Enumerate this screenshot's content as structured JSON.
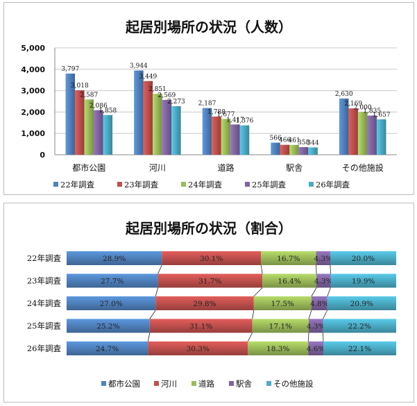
{
  "chart_data": [
    {
      "type": "bar",
      "title": "起居別場所の状況（人数）",
      "categories": [
        "都市公園",
        "河川",
        "道路",
        "駅舎",
        "その他施設"
      ],
      "series": [
        {
          "name": "22年調査",
          "color": "#4f81bd",
          "values": [
            3797,
            3944,
            2187,
            566,
            2630
          ]
        },
        {
          "name": "23年調査",
          "color": "#c0504d",
          "values": [
            3018,
            3449,
            1788,
            466,
            2169
          ]
        },
        {
          "name": "24年調査",
          "color": "#9bbb59",
          "values": [
            2587,
            2851,
            1677,
            461,
            2000
          ]
        },
        {
          "name": "25年調査",
          "color": "#8064a2",
          "values": [
            2086,
            2569,
            1417,
            358,
            1835
          ]
        },
        {
          "name": "26年調査",
          "color": "#4bacc6",
          "values": [
            1858,
            2273,
            1376,
            344,
            1657
          ]
        }
      ],
      "ylim": [
        0,
        5000
      ],
      "yticks": [
        "0",
        "1,000",
        "2,000",
        "3,000",
        "4,000",
        "5,000"
      ],
      "data_labels": [
        [
          "3,797",
          "3,944",
          "2,187",
          "566",
          "2,630"
        ],
        [
          "3,018",
          "3,449",
          "1,788",
          "466",
          "2,169"
        ],
        [
          "2,587",
          "2,851",
          "1,677",
          "461",
          "2,000"
        ],
        [
          "2,086",
          "2,569",
          "1,417",
          "358",
          "1,835"
        ],
        [
          "1,858",
          "2,273",
          "1,376",
          "344",
          "1,657"
        ]
      ],
      "grid": true,
      "legend_position": "bottom"
    },
    {
      "type": "bar",
      "orientation": "horizontal",
      "stacked": "percent",
      "title": "起居別場所の状況（割合）",
      "categories": [
        "22年調査",
        "23年調査",
        "24年調査",
        "25年調査",
        "26年調査"
      ],
      "series": [
        {
          "name": "都市公園",
          "color": "#4f81bd",
          "values": [
            28.9,
            27.7,
            27.0,
            25.2,
            24.7
          ],
          "labels": [
            "28.9%",
            "27.7%",
            "27.0%",
            "25.2%",
            "24.7%"
          ]
        },
        {
          "name": "河川",
          "color": "#c0504d",
          "values": [
            30.1,
            31.7,
            29.8,
            31.1,
            30.3
          ],
          "labels": [
            "30.1%",
            "31.7%",
            "29.8%",
            "31.1%",
            "30.3%"
          ]
        },
        {
          "name": "道路",
          "color": "#9bbb59",
          "values": [
            16.7,
            16.4,
            17.5,
            17.1,
            18.3
          ],
          "labels": [
            "16.7%",
            "16.4%",
            "17.5%",
            "17.1%",
            "18.3%"
          ]
        },
        {
          "name": "駅舎",
          "color": "#8064a2",
          "values": [
            4.3,
            4.3,
            4.8,
            4.3,
            4.6
          ],
          "labels": [
            "4.3%",
            "4.3%",
            "4.8%",
            "4.3%",
            "4.6%"
          ]
        },
        {
          "name": "その他施設",
          "color": "#4bacc6",
          "values": [
            20.0,
            19.9,
            20.9,
            22.2,
            22.1
          ],
          "labels": [
            "20.0%",
            "19.9%",
            "20.9%",
            "22.2%",
            "22.1%"
          ]
        }
      ],
      "series_lines": true,
      "legend_position": "bottom"
    }
  ]
}
